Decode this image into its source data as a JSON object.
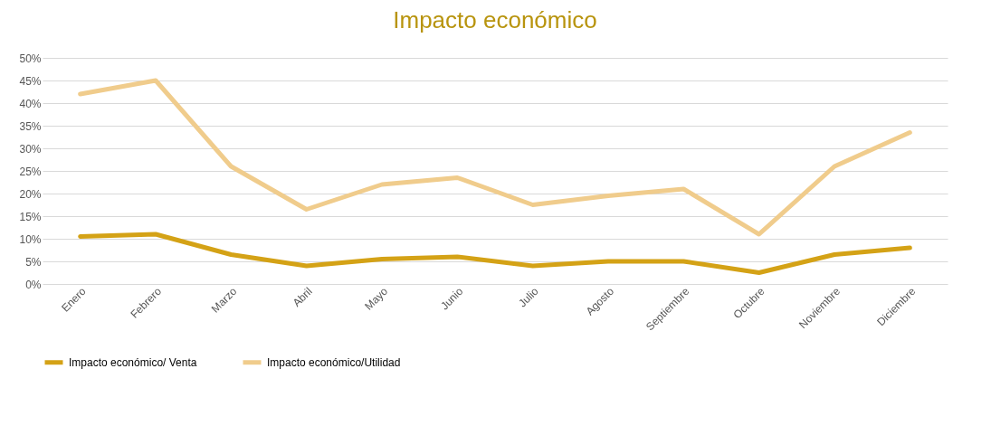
{
  "chart_data": {
    "type": "line",
    "title": "Impacto económico",
    "categories": [
      "Enero",
      "Febrero",
      "Marzo",
      "Abril",
      "Mayo",
      "Junio",
      "Julio",
      "Agosto",
      "Septiembre",
      "Octubre",
      "Noviembre",
      "Diciembre"
    ],
    "series": [
      {
        "name": "Impacto económico/ Venta",
        "color": "#d4a216",
        "values": [
          10.5,
          11,
          6.5,
          4,
          5.5,
          6,
          4,
          5,
          5,
          2.5,
          6.5,
          8
        ]
      },
      {
        "name": "Impacto económico/Utilidad",
        "color": "#f0cc8c",
        "values": [
          42,
          45,
          26,
          16.5,
          22,
          23.5,
          17.5,
          19.5,
          21,
          11,
          26,
          33.5
        ]
      }
    ],
    "ylim": [
      0,
      50
    ],
    "yticks": [
      {
        "value": 0,
        "label": "0%"
      },
      {
        "value": 5,
        "label": "5%"
      },
      {
        "value": 10,
        "label": "10%"
      },
      {
        "value": 15,
        "label": "15%"
      },
      {
        "value": 20,
        "label": "20%"
      },
      {
        "value": 25,
        "label": "25%"
      },
      {
        "value": 30,
        "label": "30%"
      },
      {
        "value": 35,
        "label": "35%"
      },
      {
        "value": 40,
        "label": "40%"
      },
      {
        "value": 45,
        "label": "45%"
      },
      {
        "value": 50,
        "label": "50%"
      }
    ],
    "grid": "y",
    "legend": "bottom",
    "marker": "none",
    "line_style": "solid"
  }
}
